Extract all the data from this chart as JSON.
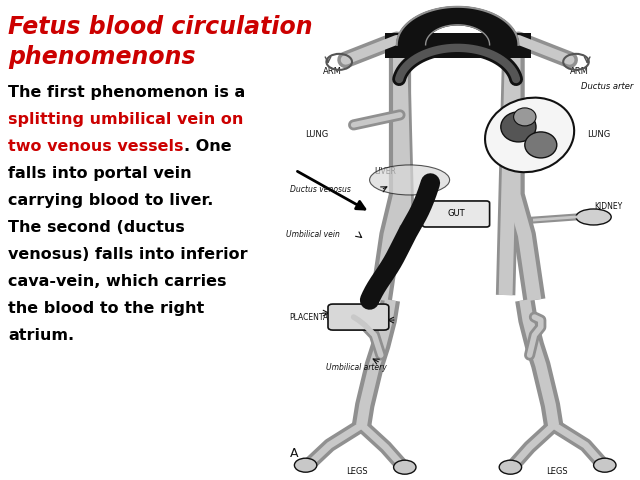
{
  "bg_color": "#ffffff",
  "title_line1": "Fetus blood circulation",
  "title_line2": "phenomenons",
  "title_color": "#cc0000",
  "title_fontsize": 17,
  "title_style": "italic",
  "title_weight": "bold",
  "body_fontsize": 11.5,
  "lines": [
    [
      [
        "The first phenomenon is a ",
        "#000000",
        false
      ]
    ],
    [
      [
        "splitting umbilical vein on",
        "#cc0000",
        false
      ]
    ],
    [
      [
        "two venous vessels",
        "#cc0000",
        false
      ],
      [
        ". One",
        "#000000",
        false
      ]
    ],
    [
      [
        "falls into portal vein",
        "#000000",
        false
      ]
    ],
    [
      [
        "carrying blood to liver.",
        "#000000",
        false
      ]
    ],
    [
      [
        "The second (ductus",
        "#000000",
        false
      ]
    ],
    [
      [
        "venosus) falls into inferior",
        "#000000",
        false
      ]
    ],
    [
      [
        "cava-vein, which carries",
        "#000000",
        false
      ]
    ],
    [
      [
        "the blood to the right",
        "#000000",
        false
      ]
    ],
    [
      [
        "atrium.",
        "#000000",
        false
      ]
    ]
  ],
  "gray": "#909090",
  "dark_gray": "#555555",
  "light_gray": "#c8c8c8",
  "black": "#111111",
  "white": "#ffffff"
}
